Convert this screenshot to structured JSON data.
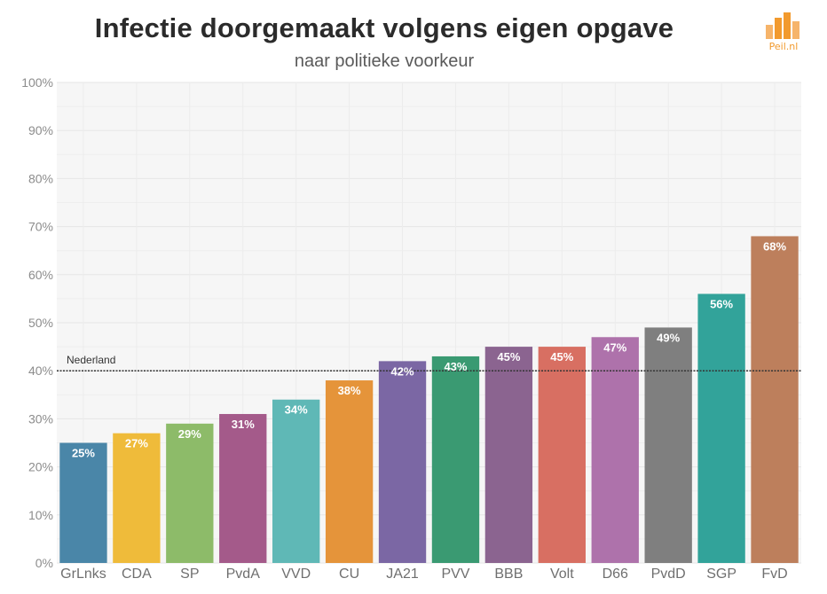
{
  "header": {
    "title": "Infectie doorgemaakt volgens eigen opgave",
    "subtitle": "naar politieke voorkeur"
  },
  "logo": {
    "text": "Peil.nl",
    "color": "#f29a2e"
  },
  "chart_data": {
    "type": "bar",
    "title": "Infectie doorgemaakt volgens eigen opgave",
    "subtitle": "naar politieke voorkeur",
    "xlabel": "",
    "ylabel": "",
    "ylim": [
      0,
      100
    ],
    "yticks": [
      0,
      10,
      20,
      30,
      40,
      50,
      60,
      70,
      80,
      90,
      100
    ],
    "ytick_labels": [
      "0%",
      "10%",
      "20%",
      "30%",
      "40%",
      "50%",
      "60%",
      "70%",
      "80%",
      "90%",
      "100%"
    ],
    "grid": true,
    "legend": "none",
    "categories": [
      "GrLnks",
      "CDA",
      "SP",
      "PvdA",
      "VVD",
      "CU",
      "JA21",
      "PVV",
      "BBB",
      "Volt",
      "D66",
      "PvdD",
      "SGP",
      "FvD"
    ],
    "values": [
      25,
      27,
      29,
      31,
      34,
      38,
      42,
      43,
      45,
      45,
      47,
      49,
      56,
      68
    ],
    "value_labels": [
      "25%",
      "27%",
      "29%",
      "31%",
      "34%",
      "38%",
      "42%",
      "43%",
      "45%",
      "45%",
      "47%",
      "49%",
      "56%",
      "68%"
    ],
    "colors": [
      "#4a86a8",
      "#efbb3a",
      "#8dbb69",
      "#a45a8a",
      "#5fb8b6",
      "#e5943a",
      "#7b67a4",
      "#3a9a72",
      "#8b6490",
      "#d86f62",
      "#ae72ab",
      "#7f7f7f",
      "#32a39a",
      "#bd7f5c"
    ],
    "reference_line": {
      "label": "Nederland",
      "value": 40
    }
  }
}
